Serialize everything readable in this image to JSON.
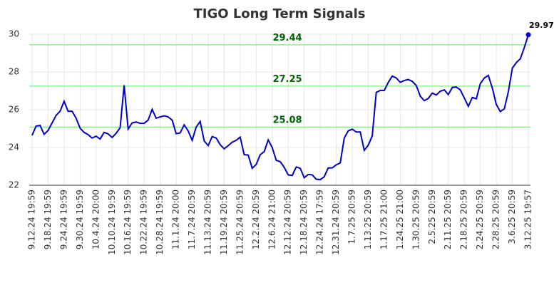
{
  "chart_data": {
    "type": "line",
    "title": "TIGO Long Term Signals",
    "categories": [
      "9.12.24 19:59",
      null,
      null,
      null,
      "9.18.24 19:59",
      null,
      null,
      null,
      "9.24.24 19:59",
      null,
      null,
      null,
      "9.30.24 19:59",
      null,
      null,
      null,
      "10.4.24 20:00",
      null,
      null,
      null,
      "10.10.24 19:59",
      null,
      null,
      null,
      "10.16.24 19:59",
      null,
      null,
      null,
      "10.22.24 19:59",
      null,
      null,
      null,
      "10.28.24 19:59",
      null,
      null,
      null,
      "11.1.24 20:00",
      null,
      null,
      null,
      "11.7.24 20:59",
      null,
      null,
      null,
      "11.13.24 20:59",
      null,
      null,
      null,
      "11.19.24 20:59",
      null,
      null,
      null,
      "11.25.24 20:59",
      null,
      null,
      null,
      "12.2.24 20:59",
      null,
      null,
      null,
      "12.6.24 21:00",
      null,
      null,
      null,
      "12.12.24 20:59",
      null,
      null,
      null,
      "12.18.24 20:59",
      null,
      null,
      null,
      "12.24.24 17:59",
      null,
      null,
      null,
      "12.31.24 20:59",
      null,
      null,
      null,
      "1.7.25 20:59",
      null,
      null,
      null,
      "1.13.25 20:59",
      null,
      null,
      null,
      "1.17.25 21:00",
      null,
      null,
      null,
      "1.24.25 21:00",
      null,
      null,
      null,
      "1.30.25 20:59",
      null,
      null,
      null,
      "2.5.25 20:59",
      null,
      null,
      null,
      "2.11.25 20:59",
      null,
      null,
      null,
      "2.18.25 20:59",
      null,
      null,
      null,
      "2.24.25 20:59",
      null,
      null,
      null,
      "2.28.25 20:59",
      null,
      null,
      null,
      "3.6.25 20:59",
      null,
      null,
      null,
      "3.12.25 19:57"
    ],
    "values": [
      24.64,
      25.13,
      25.17,
      24.7,
      24.9,
      25.3,
      25.7,
      25.92,
      26.45,
      25.92,
      25.92,
      25.55,
      25.02,
      24.8,
      24.68,
      24.5,
      24.6,
      24.45,
      24.8,
      24.72,
      24.53,
      24.75,
      25.05,
      27.3,
      24.98,
      25.3,
      25.35,
      25.28,
      25.28,
      25.45,
      26.02,
      25.55,
      25.62,
      25.68,
      25.62,
      25.45,
      24.73,
      24.77,
      25.2,
      24.88,
      24.38,
      25.08,
      25.38,
      24.35,
      24.1,
      24.58,
      24.5,
      24.15,
      23.93,
      24.1,
      24.28,
      24.38,
      24.55,
      23.62,
      23.6,
      22.9,
      23.1,
      23.62,
      23.78,
      24.4,
      24.0,
      23.32,
      23.25,
      22.95,
      22.55,
      22.52,
      22.97,
      22.9,
      22.4,
      22.57,
      22.55,
      22.32,
      22.3,
      22.45,
      22.92,
      22.92,
      23.08,
      23.18,
      24.5,
      24.88,
      24.97,
      24.82,
      24.82,
      23.85,
      24.12,
      24.62,
      26.92,
      27.02,
      27.02,
      27.45,
      27.78,
      27.68,
      27.45,
      27.55,
      27.6,
      27.5,
      27.28,
      26.72,
      26.48,
      26.6,
      26.88,
      26.78,
      26.98,
      27.05,
      26.8,
      27.18,
      27.2,
      27.05,
      26.62,
      26.18,
      26.65,
      26.58,
      27.38,
      27.68,
      27.82,
      27.15,
      26.28,
      25.9,
      26.05,
      26.95,
      28.2,
      28.5,
      28.7,
      29.3,
      29.97
    ],
    "color": "#0000cc",
    "signals": [
      29.44,
      27.25,
      25.08
    ],
    "signal_color": "#90ee90",
    "signal_label_color": "#006400",
    "ylim": [
      22,
      30
    ],
    "yticks": [
      22,
      24,
      26,
      28,
      30
    ],
    "grid": true
  }
}
